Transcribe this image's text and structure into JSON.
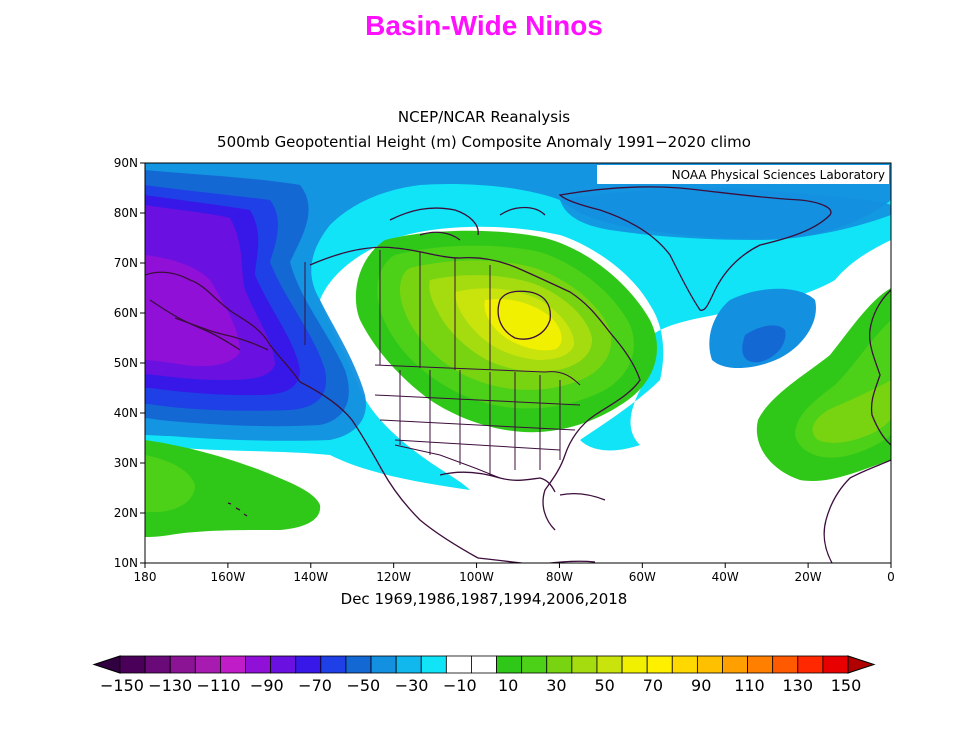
{
  "title": "Basin-Wide Ninos",
  "title_color": "#ff10ff",
  "subtitle_line1": "NCEP/NCAR Reanalysis",
  "subtitle_line2": "500mb Geopotential Height (m) Composite Anomaly 1991−2020 climo",
  "credit": "NOAA Physical Sciences Laboratory",
  "footer": "Dec 1969,1986,1987,1994,2006,2018",
  "map": {
    "lat_labels": [
      "90N",
      "80N",
      "70N",
      "60N",
      "50N",
      "40N",
      "30N",
      "20N",
      "10N"
    ],
    "lon_labels": [
      "180",
      "160W",
      "140W",
      "120W",
      "100W",
      "80W",
      "60W",
      "40W",
      "20W",
      "0"
    ]
  },
  "colorbar": {
    "labels": [
      "−150",
      "−130",
      "−110",
      "−90",
      "−70",
      "−50",
      "−30",
      "−10",
      "10",
      "30",
      "50",
      "70",
      "90",
      "110",
      "130",
      "150"
    ],
    "colors": [
      "#4a0058",
      "#6a0a78",
      "#8a1494",
      "#a81bb0",
      "#c01cc8",
      "#9010d8",
      "#6a10e0",
      "#3818e8",
      "#1e40e6",
      "#1468d4",
      "#1490e0",
      "#10b8ee",
      "#10e4f6",
      "#ffffff",
      "#ffffff",
      "#30c818",
      "#4cd018",
      "#78d410",
      "#a4dc10",
      "#c8e40c",
      "#f0f000",
      "#fff000",
      "#ffd800",
      "#ffc000",
      "#ffa000",
      "#ff8000",
      "#ff5a00",
      "#ff2800",
      "#e80000"
    ],
    "end_low": "#300040",
    "end_high": "#b00000"
  }
}
